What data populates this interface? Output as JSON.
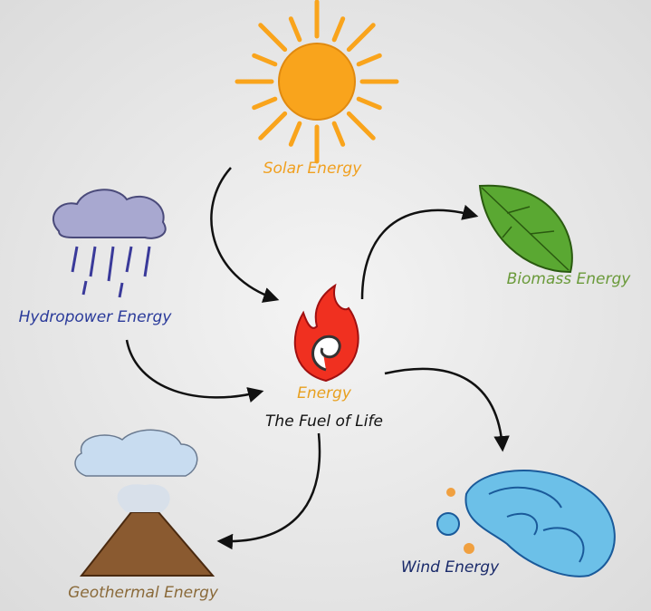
{
  "center": {
    "title": "Energy",
    "subtitle": "The Fuel of Life"
  },
  "nodes": [
    {
      "label": "Solar Energy"
    },
    {
      "label": "Biomass Energy"
    },
    {
      "label": "Wind Energy"
    },
    {
      "label": "Geothermal Energy"
    },
    {
      "label": "Hydropower Energy"
    }
  ]
}
